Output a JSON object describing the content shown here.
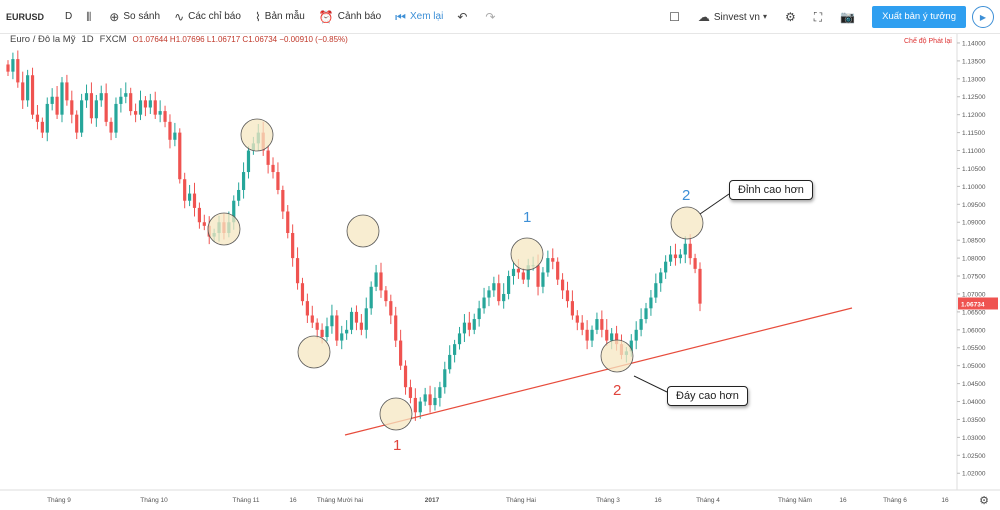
{
  "toolbar": {
    "symbol": "EURUSD",
    "interval": "D",
    "compare": "So sánh",
    "indicators": "Các chỉ báo",
    "templates": "Bản mẫu",
    "alerts": "Cảnh báo",
    "replay": "Xem lại",
    "account": "Sinvest vn",
    "publish": "Xuất bản ý tưởng"
  },
  "legend": {
    "name": "Euro / Đô la Mỹ",
    "interval": "1D",
    "source": "FXCM",
    "ohlc": "O1.07644 H1.07696 L1.06717 C1.06734 −0.00910 (−0.85%)"
  },
  "mode_label": "Chế độ Phát lại",
  "chart_data": {
    "type": "candlestick",
    "price_axis": [
      "1.14000",
      "1.13500",
      "1.13000",
      "1.12500",
      "1.12000",
      "1.11500",
      "1.11000",
      "1.10500",
      "1.10000",
      "1.09500",
      "1.09000",
      "1.08500",
      "1.08000",
      "1.07500",
      "1.07000",
      "1.06500",
      "1.06000",
      "1.05500",
      "1.05000",
      "1.04500",
      "1.04000",
      "1.03500",
      "1.03000",
      "1.02500",
      "1.02000"
    ],
    "price_range": [
      1.017,
      1.1425
    ],
    "current_price": "1.06734",
    "time_axis": [
      "Tháng 9",
      "Tháng 10",
      "Tháng 11",
      "16",
      "Tháng Mười hai",
      "2017",
      "Tháng Hai",
      "Tháng 3",
      "16",
      "Tháng 4",
      "Tháng Năm",
      "16",
      "Tháng 6",
      "16"
    ],
    "series_close": [
      1.132,
      1.1355,
      1.129,
      1.124,
      1.131,
      1.12,
      1.118,
      1.115,
      1.123,
      1.125,
      1.12,
      1.129,
      1.124,
      1.12,
      1.115,
      1.124,
      1.126,
      1.119,
      1.124,
      1.126,
      1.118,
      1.115,
      1.123,
      1.125,
      1.126,
      1.121,
      1.12,
      1.124,
      1.122,
      1.124,
      1.12,
      1.121,
      1.118,
      1.113,
      1.115,
      1.102,
      1.096,
      1.098,
      1.094,
      1.09,
      1.089,
      1.086,
      1.087,
      1.09,
      1.087,
      1.09,
      1.096,
      1.099,
      1.104,
      1.11,
      1.112,
      1.115,
      1.11,
      1.106,
      1.104,
      1.099,
      1.093,
      1.087,
      1.08,
      1.073,
      1.068,
      1.064,
      1.062,
      1.06,
      1.058,
      1.061,
      1.064,
      1.057,
      1.059,
      1.06,
      1.065,
      1.062,
      1.06,
      1.066,
      1.072,
      1.076,
      1.071,
      1.068,
      1.064,
      1.057,
      1.05,
      1.044,
      1.041,
      1.037,
      1.04,
      1.042,
      1.039,
      1.041,
      1.044,
      1.049,
      1.053,
      1.056,
      1.059,
      1.062,
      1.06,
      1.063,
      1.066,
      1.069,
      1.071,
      1.073,
      1.068,
      1.07,
      1.075,
      1.077,
      1.076,
      1.074,
      1.078,
      1.078,
      1.072,
      1.076,
      1.08,
      1.079,
      1.074,
      1.071,
      1.068,
      1.064,
      1.062,
      1.06,
      1.057,
      1.06,
      1.063,
      1.06,
      1.057,
      1.059,
      1.056,
      1.053,
      1.054,
      1.057,
      1.06,
      1.063,
      1.066,
      1.069,
      1.073,
      1.076,
      1.079,
      1.081,
      1.08,
      1.081,
      1.084,
      1.08,
      1.077,
      1.0673
    ]
  },
  "trendline_color": "#e74c3c",
  "annotations": {
    "low_1": "1",
    "low_2": "2",
    "high_1": "1",
    "high_2": "2",
    "higher_high": "Đỉnh cao hơn",
    "higher_low": "Đáy cao hơn"
  },
  "colors": {
    "up": "#26a69a",
    "down": "#ef5350",
    "red_label": "#e0443c",
    "blue_label": "#3d8fd6",
    "circle_fill": "#f6e7c1",
    "accent": "#2f9ff0"
  }
}
